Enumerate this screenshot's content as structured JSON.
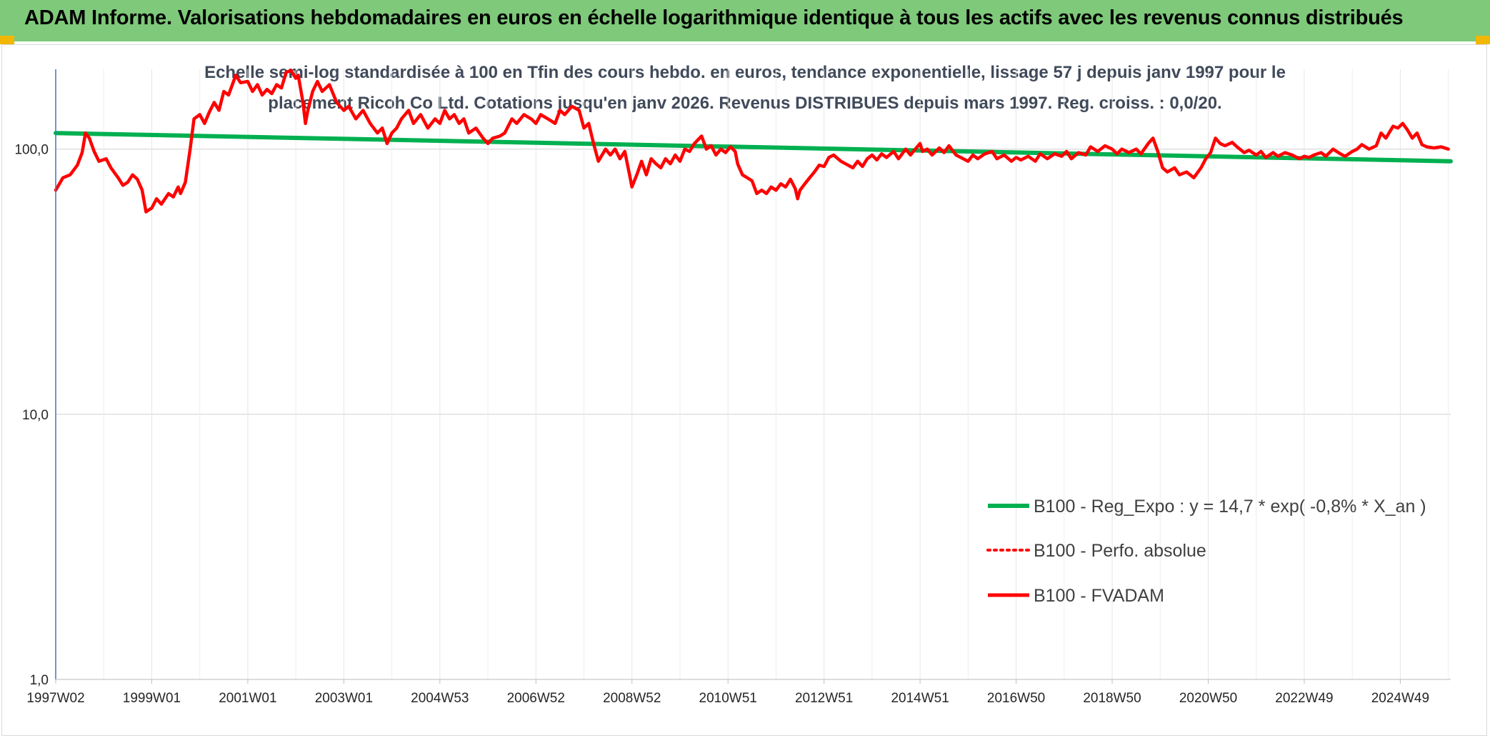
{
  "header": {
    "title": "ADAM Informe. Valorisations hebdomadaires en euros en échelle logarithmique identique à tous les actifs avec les revenus connus distribués",
    "background": "#7ec97a",
    "corner_accent": "#f2b705"
  },
  "chart_data": {
    "type": "line",
    "subtitle_line1": "Echelle semi-log standardisée à 100 en Tfin des cours hebdo. en euros, tendance exponentielle, lissage 57 j depuis janv 1997 pour le",
    "subtitle_line2": "placement Ricoh Co Ltd. Cotations jusqu'en janv 2026. Revenus DISTRIBUES depuis mars 1997. Reg. croiss. : 0,0/20.",
    "y_scale": "log",
    "ylim": [
      1,
      200
    ],
    "y_ticks": [
      {
        "value": 1,
        "label": "1,0"
      },
      {
        "value": 10,
        "label": "10,0"
      },
      {
        "value": 100,
        "label": "100,0"
      }
    ],
    "xlim": [
      1997.0,
      2026.05
    ],
    "x_ticks": [
      {
        "t": 1997.0,
        "label": "1997W02"
      },
      {
        "t": 1999.0,
        "label": "1999W01"
      },
      {
        "t": 2001.0,
        "label": "2001W01"
      },
      {
        "t": 2003.0,
        "label": "2003W01"
      },
      {
        "t": 2005.0,
        "label": "2004W53"
      },
      {
        "t": 2007.0,
        "label": "2006W52"
      },
      {
        "t": 2009.0,
        "label": "2008W52"
      },
      {
        "t": 2011.0,
        "label": "2010W51"
      },
      {
        "t": 2013.0,
        "label": "2012W51"
      },
      {
        "t": 2015.0,
        "label": "2014W51"
      },
      {
        "t": 2017.0,
        "label": "2016W50"
      },
      {
        "t": 2019.0,
        "label": "2018W50"
      },
      {
        "t": 2021.0,
        "label": "2020W50"
      },
      {
        "t": 2023.0,
        "label": "2022W49"
      },
      {
        "t": 2025.0,
        "label": "2024W49"
      }
    ],
    "grid": true,
    "legend_position": "right",
    "series": [
      {
        "name": "B100 - Reg_Expo : y = 14,7 * exp( -0,8% *  X_an )",
        "color": "#00b050",
        "style": "solid",
        "points": [
          [
            1997.0,
            115
          ],
          [
            2026.05,
            90
          ]
        ]
      },
      {
        "name": "B100 - Perfo. absolue",
        "color": "#ff0000",
        "style": "dotted",
        "points": []
      },
      {
        "name": "B100 - FVADAM",
        "color": "#ff0000",
        "style": "solid",
        "points": [
          [
            1997.0,
            70
          ],
          [
            1997.15,
            78
          ],
          [
            1997.3,
            80
          ],
          [
            1997.45,
            87
          ],
          [
            1997.55,
            97
          ],
          [
            1997.62,
            115
          ],
          [
            1997.7,
            110
          ],
          [
            1997.8,
            98
          ],
          [
            1997.9,
            90
          ],
          [
            1998.05,
            92
          ],
          [
            1998.15,
            85
          ],
          [
            1998.3,
            78
          ],
          [
            1998.4,
            73
          ],
          [
            1998.5,
            75
          ],
          [
            1998.6,
            80
          ],
          [
            1998.7,
            77
          ],
          [
            1998.8,
            70
          ],
          [
            1998.88,
            58
          ],
          [
            1999.0,
            60
          ],
          [
            1999.1,
            65
          ],
          [
            1999.2,
            62
          ],
          [
            1999.35,
            68
          ],
          [
            1999.45,
            66
          ],
          [
            1999.55,
            72
          ],
          [
            1999.6,
            68
          ],
          [
            1999.7,
            75
          ],
          [
            1999.8,
            100
          ],
          [
            1999.88,
            130
          ],
          [
            2000.0,
            135
          ],
          [
            2000.1,
            125
          ],
          [
            2000.2,
            138
          ],
          [
            2000.3,
            150
          ],
          [
            2000.4,
            140
          ],
          [
            2000.5,
            165
          ],
          [
            2000.6,
            160
          ],
          [
            2000.75,
            190
          ],
          [
            2000.85,
            178
          ],
          [
            2001.0,
            180
          ],
          [
            2001.1,
            165
          ],
          [
            2001.2,
            175
          ],
          [
            2001.3,
            160
          ],
          [
            2001.4,
            168
          ],
          [
            2001.5,
            162
          ],
          [
            2001.6,
            175
          ],
          [
            2001.7,
            170
          ],
          [
            2001.8,
            195
          ],
          [
            2001.9,
            198
          ],
          [
            2002.0,
            185
          ],
          [
            2002.05,
            190
          ],
          [
            2002.15,
            150
          ],
          [
            2002.2,
            125
          ],
          [
            2002.25,
            140
          ],
          [
            2002.35,
            165
          ],
          [
            2002.45,
            180
          ],
          [
            2002.55,
            165
          ],
          [
            2002.7,
            175
          ],
          [
            2002.85,
            150
          ],
          [
            2003.0,
            140
          ],
          [
            2003.1,
            145
          ],
          [
            2003.25,
            130
          ],
          [
            2003.4,
            140
          ],
          [
            2003.55,
            125
          ],
          [
            2003.7,
            115
          ],
          [
            2003.8,
            120
          ],
          [
            2003.9,
            105
          ],
          [
            2004.0,
            115
          ],
          [
            2004.1,
            120
          ],
          [
            2004.2,
            130
          ],
          [
            2004.35,
            140
          ],
          [
            2004.45,
            125
          ],
          [
            2004.6,
            135
          ],
          [
            2004.75,
            120
          ],
          [
            2004.9,
            130
          ],
          [
            2005.0,
            125
          ],
          [
            2005.1,
            140
          ],
          [
            2005.2,
            130
          ],
          [
            2005.3,
            135
          ],
          [
            2005.4,
            125
          ],
          [
            2005.5,
            130
          ],
          [
            2005.6,
            115
          ],
          [
            2005.75,
            120
          ],
          [
            2005.9,
            110
          ],
          [
            2006.0,
            105
          ],
          [
            2006.1,
            110
          ],
          [
            2006.25,
            112
          ],
          [
            2006.35,
            115
          ],
          [
            2006.5,
            130
          ],
          [
            2006.6,
            125
          ],
          [
            2006.75,
            135
          ],
          [
            2006.9,
            130
          ],
          [
            2007.0,
            125
          ],
          [
            2007.1,
            135
          ],
          [
            2007.25,
            130
          ],
          [
            2007.4,
            125
          ],
          [
            2007.5,
            140
          ],
          [
            2007.6,
            135
          ],
          [
            2007.75,
            145
          ],
          [
            2007.9,
            140
          ],
          [
            2008.0,
            120
          ],
          [
            2008.1,
            125
          ],
          [
            2008.2,
            105
          ],
          [
            2008.3,
            90
          ],
          [
            2008.45,
            100
          ],
          [
            2008.55,
            95
          ],
          [
            2008.65,
            100
          ],
          [
            2008.75,
            92
          ],
          [
            2008.85,
            98
          ],
          [
            2008.95,
            80
          ],
          [
            2009.0,
            72
          ],
          [
            2009.1,
            80
          ],
          [
            2009.2,
            90
          ],
          [
            2009.3,
            80
          ],
          [
            2009.4,
            92
          ],
          [
            2009.5,
            88
          ],
          [
            2009.6,
            85
          ],
          [
            2009.7,
            92
          ],
          [
            2009.8,
            88
          ],
          [
            2009.9,
            95
          ],
          [
            2010.0,
            90
          ],
          [
            2010.1,
            100
          ],
          [
            2010.2,
            98
          ],
          [
            2010.3,
            105
          ],
          [
            2010.45,
            112
          ],
          [
            2010.55,
            100
          ],
          [
            2010.65,
            103
          ],
          [
            2010.75,
            95
          ],
          [
            2010.85,
            100
          ],
          [
            2010.95,
            97
          ],
          [
            2011.05,
            102
          ],
          [
            2011.15,
            98
          ],
          [
            2011.2,
            88
          ],
          [
            2011.3,
            80
          ],
          [
            2011.4,
            78
          ],
          [
            2011.5,
            76
          ],
          [
            2011.6,
            68
          ],
          [
            2011.7,
            70
          ],
          [
            2011.8,
            68
          ],
          [
            2011.9,
            72
          ],
          [
            2012.0,
            70
          ],
          [
            2012.1,
            74
          ],
          [
            2012.2,
            72
          ],
          [
            2012.3,
            77
          ],
          [
            2012.4,
            71
          ],
          [
            2012.45,
            65
          ],
          [
            2012.5,
            70
          ],
          [
            2012.6,
            74
          ],
          [
            2012.7,
            78
          ],
          [
            2012.8,
            82
          ],
          [
            2012.9,
            87
          ],
          [
            2013.0,
            86
          ],
          [
            2013.1,
            93
          ],
          [
            2013.2,
            95
          ],
          [
            2013.35,
            90
          ],
          [
            2013.45,
            88
          ],
          [
            2013.6,
            85
          ],
          [
            2013.7,
            90
          ],
          [
            2013.8,
            86
          ],
          [
            2013.9,
            92
          ],
          [
            2014.0,
            95
          ],
          [
            2014.1,
            91
          ],
          [
            2014.2,
            96
          ],
          [
            2014.3,
            93
          ],
          [
            2014.45,
            98
          ],
          [
            2014.55,
            92
          ],
          [
            2014.7,
            100
          ],
          [
            2014.8,
            95
          ],
          [
            2014.9,
            100
          ],
          [
            2015.0,
            105
          ],
          [
            2015.05,
            98
          ],
          [
            2015.15,
            100
          ],
          [
            2015.25,
            95
          ],
          [
            2015.4,
            101
          ],
          [
            2015.5,
            97
          ],
          [
            2015.6,
            103
          ],
          [
            2015.75,
            95
          ],
          [
            2015.9,
            92
          ],
          [
            2016.0,
            90
          ],
          [
            2016.1,
            95
          ],
          [
            2016.2,
            92
          ],
          [
            2016.35,
            96
          ],
          [
            2016.5,
            98
          ],
          [
            2016.6,
            92
          ],
          [
            2016.75,
            95
          ],
          [
            2016.9,
            90
          ],
          [
            2017.0,
            93
          ],
          [
            2017.1,
            91
          ],
          [
            2017.25,
            94
          ],
          [
            2017.4,
            90
          ],
          [
            2017.5,
            96
          ],
          [
            2017.65,
            92
          ],
          [
            2017.8,
            96
          ],
          [
            2017.95,
            94
          ],
          [
            2018.05,
            98
          ],
          [
            2018.15,
            92
          ],
          [
            2018.3,
            97
          ],
          [
            2018.45,
            95
          ],
          [
            2018.55,
            102
          ],
          [
            2018.7,
            98
          ],
          [
            2018.85,
            103
          ],
          [
            2019.0,
            100
          ],
          [
            2019.1,
            96
          ],
          [
            2019.2,
            100
          ],
          [
            2019.35,
            97
          ],
          [
            2019.5,
            100
          ],
          [
            2019.6,
            96
          ],
          [
            2019.75,
            105
          ],
          [
            2019.85,
            110
          ],
          [
            2019.95,
            98
          ],
          [
            2020.05,
            85
          ],
          [
            2020.15,
            82
          ],
          [
            2020.3,
            85
          ],
          [
            2020.4,
            80
          ],
          [
            2020.55,
            82
          ],
          [
            2020.7,
            78
          ],
          [
            2020.85,
            85
          ],
          [
            2020.95,
            92
          ],
          [
            2021.05,
            97
          ],
          [
            2021.15,
            110
          ],
          [
            2021.25,
            105
          ],
          [
            2021.35,
            103
          ],
          [
            2021.5,
            106
          ],
          [
            2021.6,
            102
          ],
          [
            2021.75,
            97
          ],
          [
            2021.85,
            99
          ],
          [
            2022.0,
            95
          ],
          [
            2022.1,
            98
          ],
          [
            2022.2,
            93
          ],
          [
            2022.35,
            97
          ],
          [
            2022.45,
            94
          ],
          [
            2022.6,
            97
          ],
          [
            2022.75,
            95
          ],
          [
            2022.9,
            92
          ],
          [
            2023.0,
            94
          ],
          [
            2023.1,
            93
          ],
          [
            2023.2,
            95
          ],
          [
            2023.35,
            97
          ],
          [
            2023.45,
            94
          ],
          [
            2023.6,
            100
          ],
          [
            2023.75,
            96
          ],
          [
            2023.85,
            94
          ],
          [
            2024.0,
            98
          ],
          [
            2024.1,
            100
          ],
          [
            2024.2,
            104
          ],
          [
            2024.35,
            100
          ],
          [
            2024.5,
            103
          ],
          [
            2024.6,
            115
          ],
          [
            2024.7,
            110
          ],
          [
            2024.85,
            122
          ],
          [
            2024.95,
            120
          ],
          [
            2025.05,
            125
          ],
          [
            2025.15,
            118
          ],
          [
            2025.25,
            110
          ],
          [
            2025.35,
            115
          ],
          [
            2025.45,
            104
          ],
          [
            2025.55,
            102
          ],
          [
            2025.7,
            101
          ],
          [
            2025.85,
            102
          ],
          [
            2026.0,
            100
          ]
        ]
      }
    ]
  }
}
